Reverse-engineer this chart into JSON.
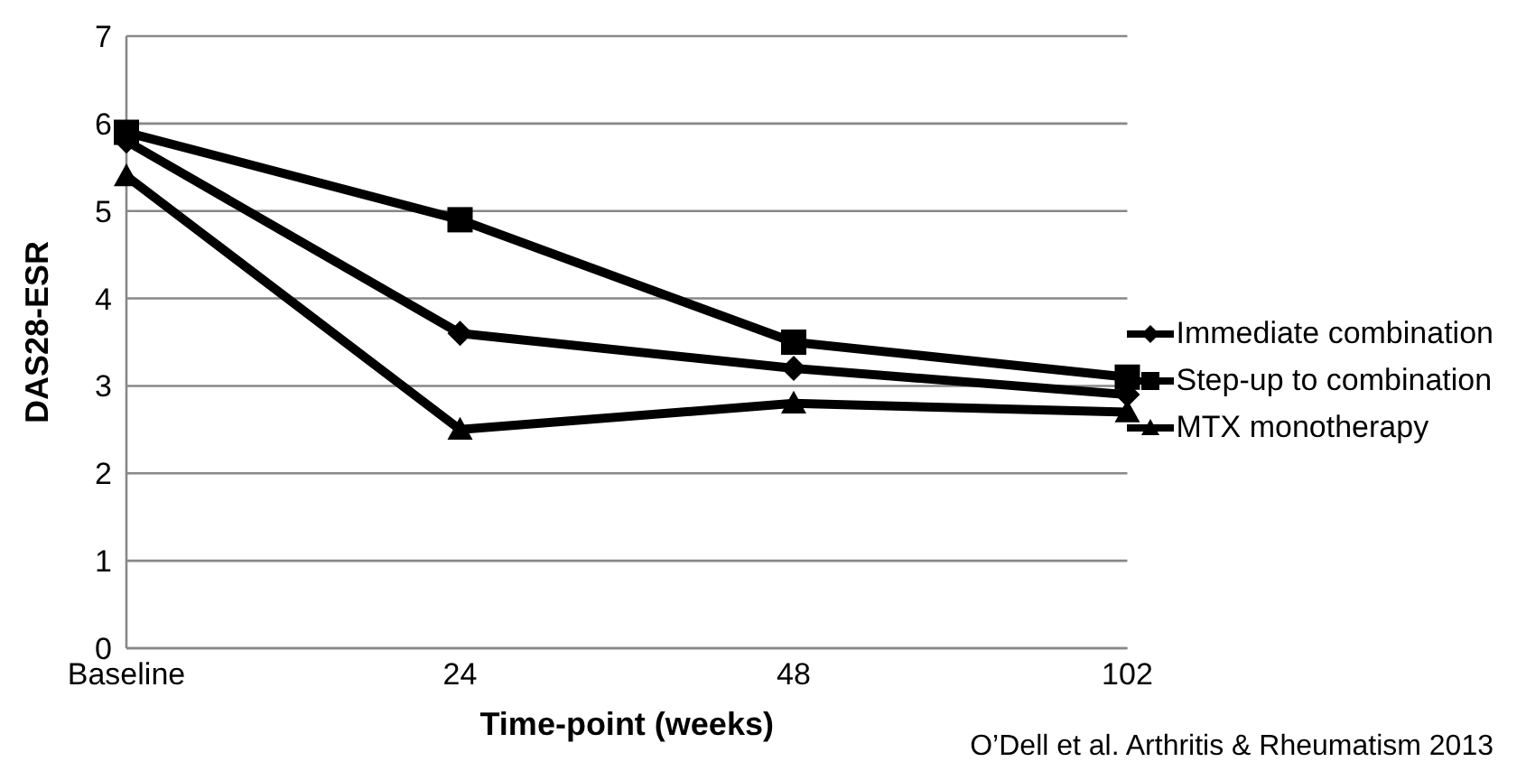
{
  "chart_data": {
    "type": "line",
    "xlabel": "Time-point (weeks)",
    "ylabel": "DAS28-ESR",
    "categories": [
      "Baseline",
      "24",
      "48",
      "102"
    ],
    "series": [
      {
        "name": "Immediate combination",
        "color": "#000000",
        "marker": "diamond",
        "values": [
          5.8,
          3.6,
          3.2,
          2.9
        ]
      },
      {
        "name": "Step-up to combination",
        "color": "#000000",
        "marker": "square",
        "values": [
          5.9,
          4.9,
          3.5,
          3.1
        ]
      },
      {
        "name": "MTX monotherapy",
        "color": "#000000",
        "marker": "triangle",
        "values": [
          5.4,
          2.5,
          2.8,
          2.7
        ]
      }
    ],
    "ylim": [
      0,
      7
    ],
    "yticks": [
      0,
      1,
      2,
      3,
      4,
      5,
      6,
      7
    ],
    "grid": "y",
    "legend": "right",
    "line_style": "solid",
    "annotations": [
      "O’Dell et al. Arthritis & Rheumatism 2013"
    ]
  }
}
